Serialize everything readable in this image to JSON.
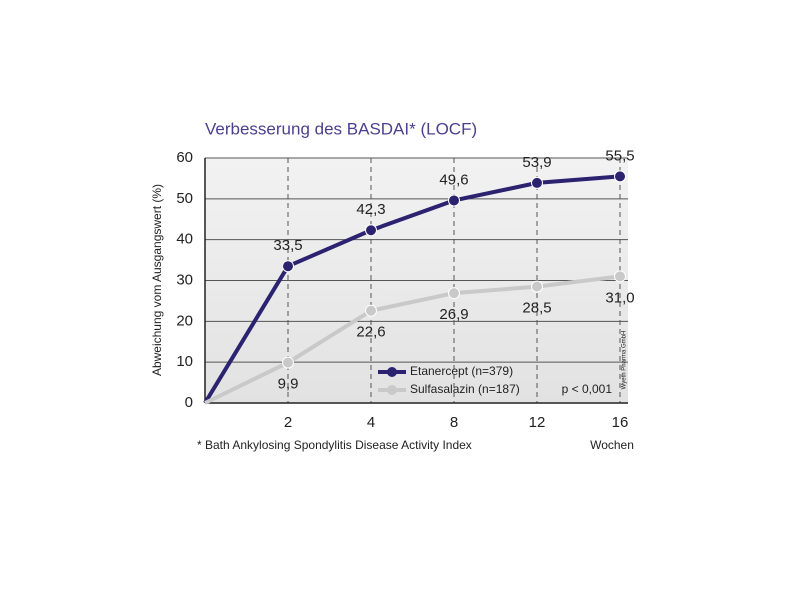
{
  "chart_data": {
    "type": "line",
    "title": "Verbesserung des BASDAI* (LOCF)",
    "y_label": "Abweichung vom Ausgangswert (%)",
    "x_unit": "Wochen",
    "footnote": "* Bath Ankylosing Spondylitis Disease Activity Index",
    "annotation": "p < 0,001",
    "source": "Wyeth Pharma GmbH",
    "categories": [
      null,
      "2",
      "4",
      "8",
      "12",
      "16"
    ],
    "series": [
      {
        "name": "Etanercept (n=379)",
        "color": "#2b2370",
        "values": [
          0,
          33.5,
          42.3,
          49.6,
          53.9,
          55.5
        ],
        "value_labels": [
          null,
          "33,5",
          "42,3",
          "49,6",
          "53,9",
          "55,5"
        ]
      },
      {
        "name": "Sulfasalazin (n=187)",
        "color": "#c9c9c9",
        "values": [
          0,
          9.9,
          22.6,
          26.9,
          28.5,
          31.0
        ],
        "value_labels": [
          null,
          "9,9",
          "22,6",
          "26,9",
          "28,5",
          "31,0"
        ]
      }
    ],
    "ylim": [
      0,
      60
    ],
    "yticks": [
      0,
      10,
      20,
      30,
      40,
      50,
      60
    ],
    "grid": true
  }
}
